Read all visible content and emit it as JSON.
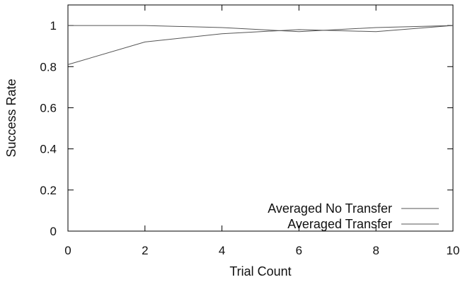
{
  "chart_data": {
    "type": "line",
    "title": "",
    "xlabel": "Trial Count",
    "ylabel": "Success Rate",
    "xlim": [
      0,
      10
    ],
    "ylim": [
      0,
      1.1
    ],
    "xticks": [
      "0",
      "2",
      "4",
      "6",
      "8",
      "10"
    ],
    "yticks": [
      "0",
      "0.2",
      "0.4",
      "0.6",
      "0.8",
      "1"
    ],
    "grid": false,
    "legend_position": "bottom-right",
    "series": [
      {
        "name": "Averaged No Transfer",
        "color": "#555555",
        "x": [
          0,
          2,
          4,
          6,
          8,
          10
        ],
        "y": [
          1.0,
          1.0,
          0.99,
          0.97,
          0.99,
          1.0
        ]
      },
      {
        "name": "Averaged Transfer",
        "color": "#555555",
        "x": [
          0,
          2,
          4,
          6,
          8,
          10
        ],
        "y": [
          0.81,
          0.92,
          0.96,
          0.98,
          0.97,
          1.0
        ]
      }
    ]
  }
}
